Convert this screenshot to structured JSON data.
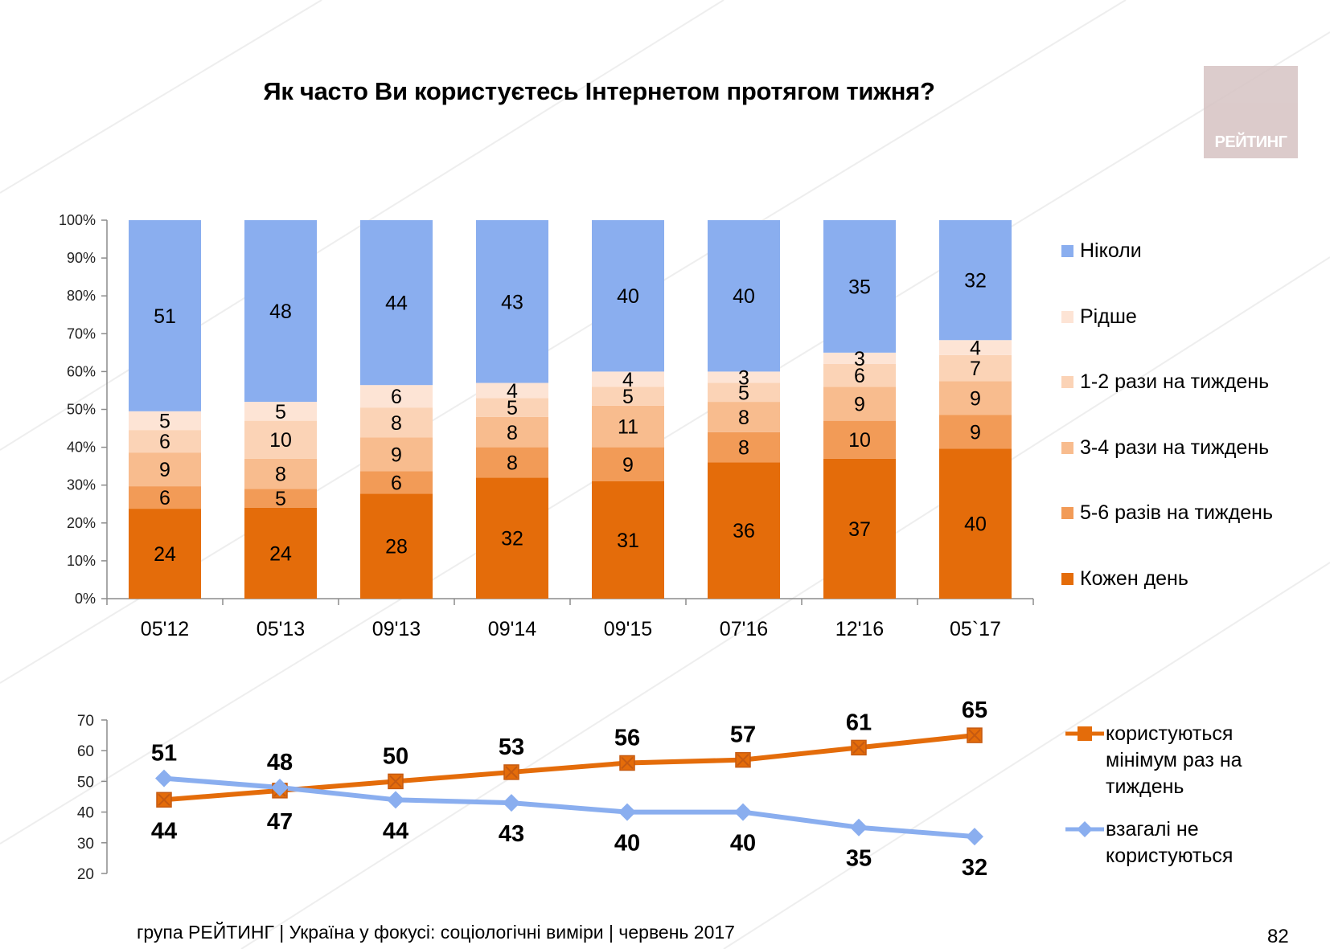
{
  "title": "Як часто Ви користуєтесь Інтернетом протягом тижня?",
  "logo": {
    "text": "РЕЙТИНГ"
  },
  "footer": "група РЕЙТИНГ  |  Україна у фокусі: соціологічні виміри  |  червень 2017",
  "page_number": "82",
  "colors": {
    "never": "#8aaeef",
    "rarely": "#fde4d5",
    "one_two": "#fbd3b6",
    "three_four": "#f8bc8e",
    "five_six": "#f29b57",
    "daily": "#e46c0a",
    "line_min_weekly": "#e46c0a",
    "line_not_use": "#8aaeef"
  },
  "chart_data": [
    {
      "type": "bar",
      "stacked": true,
      "title": "Як часто Ви користуєтесь Інтернетом протягом тижня?",
      "categories": [
        "05'12",
        "05'13",
        "09'13",
        "09'14",
        "09'15",
        "07'16",
        "12'16",
        "05`17"
      ],
      "y_tick_labels": [
        "0%",
        "10%",
        "20%",
        "30%",
        "40%",
        "50%",
        "60%",
        "70%",
        "80%",
        "90%",
        "100%"
      ],
      "ylim": [
        0,
        100
      ],
      "legend_position": "right",
      "series": [
        {
          "name": "Кожен день",
          "color_key": "daily",
          "values": [
            24,
            24,
            28,
            32,
            31,
            36,
            37,
            40
          ]
        },
        {
          "name": "5-6 разів на тиждень",
          "color_key": "five_six",
          "values": [
            6,
            5,
            6,
            8,
            9,
            8,
            10,
            9
          ]
        },
        {
          "name": "3-4 рази на тиждень",
          "color_key": "three_four",
          "values": [
            9,
            8,
            9,
            8,
            11,
            8,
            9,
            9
          ]
        },
        {
          "name": "1-2 рази на тиждень",
          "color_key": "one_two",
          "values": [
            6,
            10,
            8,
            5,
            5,
            5,
            6,
            7
          ]
        },
        {
          "name": "Рідше",
          "color_key": "rarely",
          "values": [
            5,
            5,
            6,
            4,
            4,
            3,
            3,
            4
          ]
        },
        {
          "name": "Ніколи",
          "color_key": "never",
          "values": [
            51,
            48,
            44,
            43,
            40,
            40,
            35,
            32
          ]
        }
      ],
      "legend_order": [
        "Ніколи",
        "Рідше",
        "1-2 рази на тиждень",
        "3-4 рази на тиждень",
        "5-6 разів на тиждень",
        "Кожен день"
      ]
    },
    {
      "type": "line",
      "categories": [
        "05'12",
        "05'13",
        "09'13",
        "09'14",
        "09'15",
        "07'16",
        "12'16",
        "05`17"
      ],
      "y_tick_labels": [
        "20",
        "30",
        "40",
        "50",
        "60",
        "70"
      ],
      "ylim": [
        20,
        70
      ],
      "legend_position": "right",
      "series": [
        {
          "name": "користуються мінімум раз на тиждень",
          "legend_lines": [
            "користуються",
            "мінімум раз на",
            "тиждень"
          ],
          "color_key": "line_min_weekly",
          "marker": "square",
          "values": [
            44,
            47,
            50,
            53,
            56,
            57,
            61,
            65
          ]
        },
        {
          "name": "взагалі не користуються",
          "legend_lines": [
            "взагалі не",
            "користуються"
          ],
          "color_key": "line_not_use",
          "marker": "diamond",
          "values": [
            51,
            48,
            44,
            43,
            40,
            40,
            35,
            32
          ]
        }
      ],
      "data_label_text": {
        "min_weekly": [
          "44",
          "47",
          "50",
          "53",
          "56",
          "57",
          "61",
          "65"
        ],
        "not_use": [
          "51",
          "48",
          "44",
          "43",
          "40",
          "40",
          "35",
          "32"
        ]
      }
    }
  ]
}
